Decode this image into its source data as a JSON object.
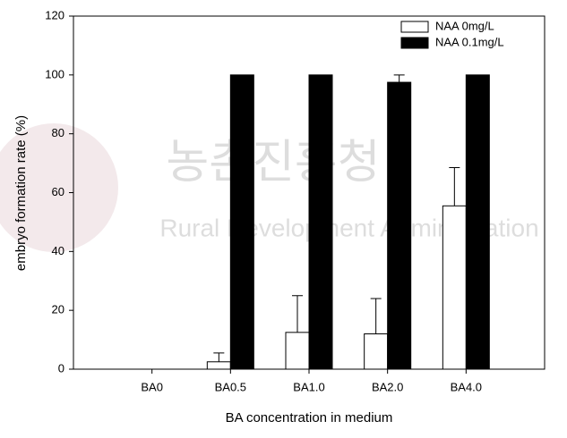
{
  "watermark": {
    "korean": "농촌진흥청",
    "english": "Rural Development Administration"
  },
  "chart_data": {
    "type": "bar",
    "x_label": "BA concentration in medium",
    "y_label": "embryo formation rate (%)",
    "categories": [
      "BA0",
      "BA0.5",
      "BA1.0",
      "BA2.0",
      "BA4.0"
    ],
    "series": [
      {
        "name": "NAA 0mg/L",
        "color": "#ffffff",
        "values": [
          0,
          2.5,
          12.5,
          12,
          55.5
        ],
        "errors": [
          null,
          3,
          12.5,
          12,
          13
        ]
      },
      {
        "name": "NAA 0.1mg/L",
        "color": "#000000",
        "values": [
          0,
          100,
          100,
          97.5,
          100
        ],
        "errors": [
          null,
          null,
          null,
          2.5,
          null
        ]
      }
    ],
    "ylim": [
      0,
      120
    ],
    "yticks": [
      0,
      20,
      40,
      60,
      80,
      100,
      120
    ],
    "legend": "top-right"
  }
}
